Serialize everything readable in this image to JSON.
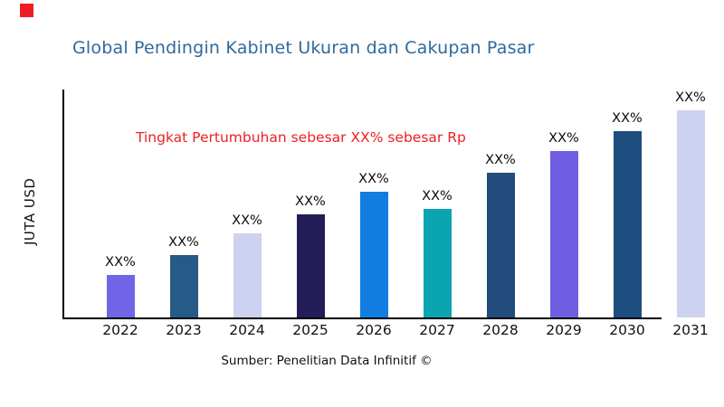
{
  "brand": {
    "square_color": "#ee1c25"
  },
  "header": {
    "title": "Global Pendingin Kabinet Ukuran dan Cakupan Pasar",
    "title_color": "#2f6a9e"
  },
  "annotation": {
    "text": "Tingkat Pertumbuhan sebesar XX% sebesar Rp",
    "color": "#ed2024"
  },
  "axes": {
    "y_label": "JUTA USD",
    "axis_color": "#000000"
  },
  "footer": {
    "source": "Sumber: Penelitian Data Infinitif ©"
  },
  "chart_data": {
    "type": "bar",
    "title": "Global Pendingin Kabinet Ukuran dan Cakupan Pasar",
    "xlabel": "",
    "ylabel": "JUTA USD",
    "categories": [
      "2022",
      "2023",
      "2024",
      "2025",
      "2026",
      "2027",
      "2028",
      "2029",
      "2030",
      "2031"
    ],
    "bar_labels": [
      "XX%",
      "XX%",
      "XX%",
      "XX%",
      "XX%",
      "XX%",
      "XX%",
      "XX%",
      "XX%",
      "XX%"
    ],
    "values_relative_pct": [
      18.7,
      27.5,
      37.1,
      45.4,
      55.4,
      47.8,
      63.7,
      73.3,
      82.1,
      91.2
    ],
    "bar_colors": [
      "#7164e7",
      "#265a87",
      "#cdd2f0",
      "#231e57",
      "#127de0",
      "#0aa5b1",
      "#214c7b",
      "#6f5ee1",
      "#1d4d7e",
      "#cdd2f0"
    ],
    "annotation": "Tingkat Pertumbuhan sebesar XX% sebesar Rp",
    "source": "Sumber: Penelitian Data Infinitif ©",
    "grid": false,
    "legend": false,
    "y_ticks": [],
    "notes": "No numeric y-axis ticks shown; bar values displayed only as XX% placeholders; values_relative_pct are bar heights as percent of plot-area height estimated from pixels; x-axis line stops before the 2031 bar."
  }
}
